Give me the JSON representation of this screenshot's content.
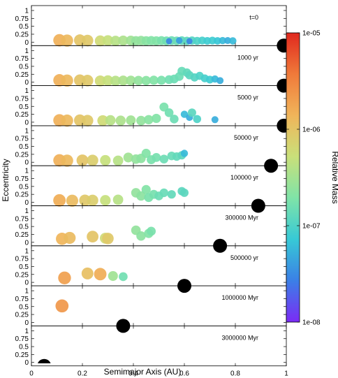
{
  "chart_data": {
    "type": "scatter",
    "xlabel": "Semimajor Axis (AU)",
    "ylabel": "Eccentricity",
    "xlim": [
      0,
      1
    ],
    "ylim": [
      0,
      1
    ],
    "xticks": [
      0,
      0.2,
      0.4,
      0.6,
      0.8,
      1
    ],
    "xtick_labels": [
      "0",
      "0.2",
      "0.4",
      "0.6",
      "0.8",
      "1"
    ],
    "yticks": [
      0,
      0.25,
      0.5,
      0.75,
      1
    ],
    "ytick_labels": [
      "0",
      "0.25",
      "0.5",
      "0.75",
      "1"
    ],
    "colorbar": {
      "label": "Relative Mass",
      "scale": "log",
      "min": 1e-08,
      "max": 1e-05,
      "ticks": [
        1e-08,
        1e-07,
        1e-06,
        1e-05
      ],
      "tick_labels": [
        "1e-08",
        "1e-07",
        "1e-06",
        "1e-05"
      ],
      "colors": [
        "#7b2bf5",
        "#3b7fe6",
        "#37c9d6",
        "#7fe3a8",
        "#c9e07a",
        "#f0b55a",
        "#f07a3a",
        "#e0281e"
      ]
    },
    "panels": [
      {
        "label": "t=0",
        "giant_planet": {
          "a": 0.99,
          "e": 0.0
        },
        "points": [
          {
            "a": 0.11,
            "e": 0.06,
            "m": 1.5e-06
          },
          {
            "a": 0.14,
            "e": 0.05,
            "m": 1.3e-06
          },
          {
            "a": 0.19,
            "e": 0.06,
            "m": 1e-06
          },
          {
            "a": 0.22,
            "e": 0.05,
            "m": 9e-07
          },
          {
            "a": 0.27,
            "e": 0.04,
            "m": 6e-07
          },
          {
            "a": 0.3,
            "e": 0.05,
            "m": 5e-07
          },
          {
            "a": 0.33,
            "e": 0.04,
            "m": 4e-07
          },
          {
            "a": 0.36,
            "e": 0.05,
            "m": 3.5e-07
          },
          {
            "a": 0.39,
            "e": 0.05,
            "m": 3e-07
          },
          {
            "a": 0.41,
            "e": 0.04,
            "m": 2.5e-07
          },
          {
            "a": 0.43,
            "e": 0.05,
            "m": 2.5e-07
          },
          {
            "a": 0.45,
            "e": 0.04,
            "m": 2.2e-07
          },
          {
            "a": 0.47,
            "e": 0.05,
            "m": 2e-07
          },
          {
            "a": 0.49,
            "e": 0.04,
            "m": 2e-07
          },
          {
            "a": 0.51,
            "e": 0.05,
            "m": 1.8e-07
          },
          {
            "a": 0.53,
            "e": 0.04,
            "m": 1.6e-07
          },
          {
            "a": 0.55,
            "e": 0.05,
            "m": 1.5e-07
          },
          {
            "a": 0.57,
            "e": 0.04,
            "m": 1.5e-07
          },
          {
            "a": 0.59,
            "e": 0.05,
            "m": 1.3e-07
          },
          {
            "a": 0.61,
            "e": 0.04,
            "m": 1.2e-07
          },
          {
            "a": 0.63,
            "e": 0.05,
            "m": 1.1e-07
          },
          {
            "a": 0.65,
            "e": 0.04,
            "m": 1e-07
          },
          {
            "a": 0.67,
            "e": 0.05,
            "m": 9e-08
          },
          {
            "a": 0.69,
            "e": 0.04,
            "m": 8e-08
          },
          {
            "a": 0.71,
            "e": 0.05,
            "m": 8e-08
          },
          {
            "a": 0.73,
            "e": 0.04,
            "m": 7e-08
          },
          {
            "a": 0.75,
            "e": 0.05,
            "m": 6e-08
          },
          {
            "a": 0.77,
            "e": 0.05,
            "m": 5e-08
          },
          {
            "a": 0.79,
            "e": 0.04,
            "m": 6e-08
          },
          {
            "a": 0.58,
            "e": 0.05,
            "m": 4e-08
          },
          {
            "a": 0.62,
            "e": 0.03,
            "m": 3e-08
          },
          {
            "a": 0.54,
            "e": 0.03,
            "m": 3e-08
          }
        ]
      },
      {
        "label": "1000 yr",
        "giant_planet": {
          "a": 0.99,
          "e": 0.0
        },
        "points": [
          {
            "a": 0.11,
            "e": 0.06,
            "m": 1.5e-06
          },
          {
            "a": 0.14,
            "e": 0.05,
            "m": 1.3e-06
          },
          {
            "a": 0.19,
            "e": 0.06,
            "m": 1e-06
          },
          {
            "a": 0.22,
            "e": 0.05,
            "m": 9e-07
          },
          {
            "a": 0.27,
            "e": 0.04,
            "m": 6e-07
          },
          {
            "a": 0.3,
            "e": 0.05,
            "m": 5e-07
          },
          {
            "a": 0.33,
            "e": 0.04,
            "m": 4e-07
          },
          {
            "a": 0.36,
            "e": 0.05,
            "m": 3.5e-07
          },
          {
            "a": 0.39,
            "e": 0.05,
            "m": 3e-07
          },
          {
            "a": 0.42,
            "e": 0.05,
            "m": 2.5e-07
          },
          {
            "a": 0.45,
            "e": 0.05,
            "m": 2.2e-07
          },
          {
            "a": 0.48,
            "e": 0.06,
            "m": 2e-07
          },
          {
            "a": 0.51,
            "e": 0.06,
            "m": 1.8e-07
          },
          {
            "a": 0.54,
            "e": 0.08,
            "m": 1.6e-07
          },
          {
            "a": 0.56,
            "e": 0.1,
            "m": 1.5e-07
          },
          {
            "a": 0.58,
            "e": 0.18,
            "m": 1.5e-07
          },
          {
            "a": 0.59,
            "e": 0.35,
            "m": 1.4e-07
          },
          {
            "a": 0.61,
            "e": 0.3,
            "m": 1.3e-07
          },
          {
            "a": 0.62,
            "e": 0.22,
            "m": 1.2e-07
          },
          {
            "a": 0.64,
            "e": 0.15,
            "m": 1.1e-07
          },
          {
            "a": 0.66,
            "e": 0.2,
            "m": 1e-07
          },
          {
            "a": 0.68,
            "e": 0.12,
            "m": 9e-08
          },
          {
            "a": 0.7,
            "e": 0.08,
            "m": 8e-08
          },
          {
            "a": 0.72,
            "e": 0.1,
            "m": 6e-08
          },
          {
            "a": 0.74,
            "e": 0.05,
            "m": 5e-08
          }
        ]
      },
      {
        "label": "5000 yr",
        "giant_planet": {
          "a": 0.99,
          "e": 0.0
        },
        "points": [
          {
            "a": 0.11,
            "e": 0.06,
            "m": 1.5e-06
          },
          {
            "a": 0.14,
            "e": 0.05,
            "m": 1.3e-06
          },
          {
            "a": 0.19,
            "e": 0.06,
            "m": 1e-06
          },
          {
            "a": 0.22,
            "e": 0.05,
            "m": 9e-07
          },
          {
            "a": 0.28,
            "e": 0.05,
            "m": 6e-07
          },
          {
            "a": 0.31,
            "e": 0.06,
            "m": 4e-07
          },
          {
            "a": 0.35,
            "e": 0.05,
            "m": 3.5e-07
          },
          {
            "a": 0.39,
            "e": 0.06,
            "m": 3e-07
          },
          {
            "a": 0.43,
            "e": 0.05,
            "m": 2.5e-07
          },
          {
            "a": 0.46,
            "e": 0.08,
            "m": 2.2e-07
          },
          {
            "a": 0.49,
            "e": 0.12,
            "m": 2e-07
          },
          {
            "a": 0.52,
            "e": 0.48,
            "m": 1.8e-07
          },
          {
            "a": 0.54,
            "e": 0.3,
            "m": 1.6e-07
          },
          {
            "a": 0.56,
            "e": 0.1,
            "m": 1.5e-07
          },
          {
            "a": 0.6,
            "e": 0.25,
            "m": 6e-08
          },
          {
            "a": 0.62,
            "e": 0.15,
            "m": 5e-08
          },
          {
            "a": 0.63,
            "e": 0.3,
            "m": 1.2e-07
          },
          {
            "a": 0.65,
            "e": 0.1,
            "m": 1e-07
          },
          {
            "a": 0.72,
            "e": 0.08,
            "m": 5e-08
          }
        ]
      },
      {
        "label": "50000 yr",
        "giant_planet": {
          "a": 0.94,
          "e": 0.0
        },
        "points": [
          {
            "a": 0.11,
            "e": 0.06,
            "m": 1.5e-06
          },
          {
            "a": 0.14,
            "e": 0.05,
            "m": 1.3e-06
          },
          {
            "a": 0.2,
            "e": 0.06,
            "m": 1e-06
          },
          {
            "a": 0.24,
            "e": 0.06,
            "m": 8e-07
          },
          {
            "a": 0.29,
            "e": 0.06,
            "m": 5e-07
          },
          {
            "a": 0.34,
            "e": 0.05,
            "m": 4e-07
          },
          {
            "a": 0.38,
            "e": 0.15,
            "m": 3e-07
          },
          {
            "a": 0.41,
            "e": 0.1,
            "m": 2.5e-07
          },
          {
            "a": 0.43,
            "e": 0.12,
            "m": 2.3e-07
          },
          {
            "a": 0.45,
            "e": 0.28,
            "m": 2e-07
          },
          {
            "a": 0.47,
            "e": 0.08,
            "m": 1.8e-07
          },
          {
            "a": 0.49,
            "e": 0.15,
            "m": 1.7e-07
          },
          {
            "a": 0.52,
            "e": 0.1,
            "m": 1.5e-07
          },
          {
            "a": 0.55,
            "e": 0.2,
            "m": 1.4e-07
          },
          {
            "a": 0.57,
            "e": 0.18,
            "m": 1.3e-07
          },
          {
            "a": 0.59,
            "e": 0.22,
            "m": 1.2e-07
          },
          {
            "a": 0.6,
            "e": 0.28,
            "m": 6e-08
          }
        ]
      },
      {
        "label": "100000 yr",
        "giant_planet": {
          "a": 0.89,
          "e": 0.0
        },
        "points": [
          {
            "a": 0.11,
            "e": 0.06,
            "m": 1.6e-06
          },
          {
            "a": 0.16,
            "e": 0.05,
            "m": 1.2e-06
          },
          {
            "a": 0.21,
            "e": 0.06,
            "m": 9e-07
          },
          {
            "a": 0.24,
            "e": 0.06,
            "m": 8e-07
          },
          {
            "a": 0.29,
            "e": 0.06,
            "m": 5e-07
          },
          {
            "a": 0.34,
            "e": 0.08,
            "m": 4e-07
          },
          {
            "a": 0.41,
            "e": 0.3,
            "m": 2.5e-07
          },
          {
            "a": 0.43,
            "e": 0.2,
            "m": 2.3e-07
          },
          {
            "a": 0.45,
            "e": 0.4,
            "m": 2e-07
          },
          {
            "a": 0.46,
            "e": 0.15,
            "m": 1.8e-07
          },
          {
            "a": 0.48,
            "e": 0.25,
            "m": 1.7e-07
          },
          {
            "a": 0.5,
            "e": 0.2,
            "m": 1.5e-07
          },
          {
            "a": 0.52,
            "e": 0.3,
            "m": 1.4e-07
          },
          {
            "a": 0.55,
            "e": 0.25,
            "m": 1.3e-07
          },
          {
            "a": 0.59,
            "e": 0.35,
            "m": 1.2e-07
          },
          {
            "a": 0.6,
            "e": 0.3,
            "m": 1.2e-07
          }
        ]
      },
      {
        "label": "300000 Myr",
        "giant_planet": {
          "a": 0.74,
          "e": 0.0
        },
        "points": [
          {
            "a": 0.12,
            "e": 0.11,
            "m": 1.4e-06
          },
          {
            "a": 0.15,
            "e": 0.14,
            "m": 1.2e-06
          },
          {
            "a": 0.24,
            "e": 0.18,
            "m": 1e-06
          },
          {
            "a": 0.29,
            "e": 0.13,
            "m": 6e-07
          },
          {
            "a": 0.3,
            "e": 0.12,
            "m": 9e-07
          },
          {
            "a": 0.41,
            "e": 0.38,
            "m": 2.5e-07
          },
          {
            "a": 0.43,
            "e": 0.2,
            "m": 2.3e-07
          },
          {
            "a": 0.46,
            "e": 0.28,
            "m": 2e-07
          },
          {
            "a": 0.47,
            "e": 0.35,
            "m": 1.8e-07
          }
        ]
      },
      {
        "label": "500000 yr",
        "giant_planet": {
          "a": 0.6,
          "e": 0.0
        },
        "points": [
          {
            "a": 0.13,
            "e": 0.14,
            "m": 2e-06
          },
          {
            "a": 0.22,
            "e": 0.28,
            "m": 1.1e-06
          },
          {
            "a": 0.27,
            "e": 0.26,
            "m": 1.6e-06
          },
          {
            "a": 0.32,
            "e": 0.2,
            "m": 3e-07
          },
          {
            "a": 0.36,
            "e": 0.18,
            "m": 1.6e-07
          }
        ]
      },
      {
        "label": "1000000 Myr",
        "giant_planet": {
          "a": 0.36,
          "e": 0.0
        },
        "points": [
          {
            "a": 0.12,
            "e": 0.52,
            "m": 2.3e-06
          }
        ]
      },
      {
        "label": "3000000 Myr",
        "giant_planet": {
          "a": 0.05,
          "e": 0.0
        },
        "points": []
      }
    ]
  }
}
